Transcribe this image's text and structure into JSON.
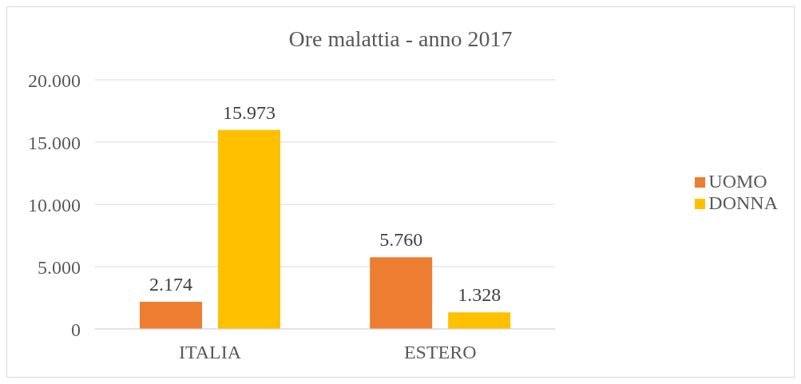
{
  "chart_data": {
    "type": "bar",
    "title": "Ore malattia - anno 2017",
    "categories": [
      "ITALIA",
      "ESTERO"
    ],
    "series": [
      {
        "name": "UOMO",
        "color": "#ed7d31",
        "values": [
          2174,
          5760
        ],
        "value_labels": [
          "2.174",
          "5.760"
        ]
      },
      {
        "name": "DONNA",
        "color": "#ffc000",
        "values": [
          15973,
          1328
        ],
        "value_labels": [
          "15.973",
          "1.328"
        ]
      }
    ],
    "ylim": [
      0,
      20000
    ],
    "yticks": [
      {
        "value": 0,
        "label": "0"
      },
      {
        "value": 5000,
        "label": "5.000"
      },
      {
        "value": 10000,
        "label": "10.000"
      },
      {
        "value": 15000,
        "label": "15.000"
      },
      {
        "value": 20000,
        "label": "20.000"
      }
    ],
    "grid": "y",
    "legend": "right"
  }
}
